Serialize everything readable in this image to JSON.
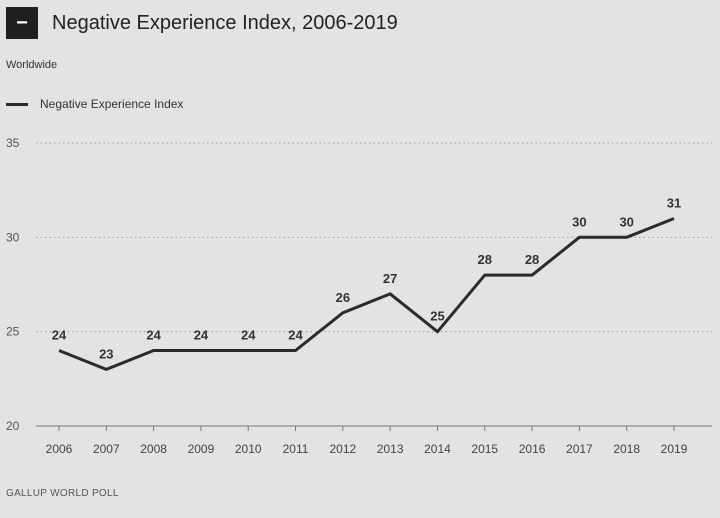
{
  "header": {
    "collapse_symbol": "−",
    "title": "Negative Experience Index, 2006-2019",
    "subtitle": "Worldwide"
  },
  "footer": {
    "source": "GALLUP WORLD POLL"
  },
  "colors": {
    "line": "#2b2b2b",
    "background": "#e3e3e1",
    "grid": "#9a9a9a"
  },
  "chart_data": {
    "type": "line",
    "title": "Negative Experience Index, 2006-2019",
    "subtitle": "Worldwide",
    "xlabel": "",
    "ylabel": "",
    "x": [
      "2006",
      "2007",
      "2008",
      "2009",
      "2010",
      "2011",
      "2012",
      "2013",
      "2014",
      "2015",
      "2016",
      "2017",
      "2018",
      "2019"
    ],
    "series": [
      {
        "name": "Negative Experience Index",
        "values": [
          24,
          23,
          24,
          24,
          24,
          24,
          26,
          27,
          25,
          28,
          28,
          30,
          30,
          31
        ]
      }
    ],
    "ylim": [
      20,
      35
    ],
    "yticks": [
      20,
      25,
      30,
      35
    ],
    "grid": "horizontal-dotted",
    "legend": "top-left",
    "data_labels": true
  }
}
